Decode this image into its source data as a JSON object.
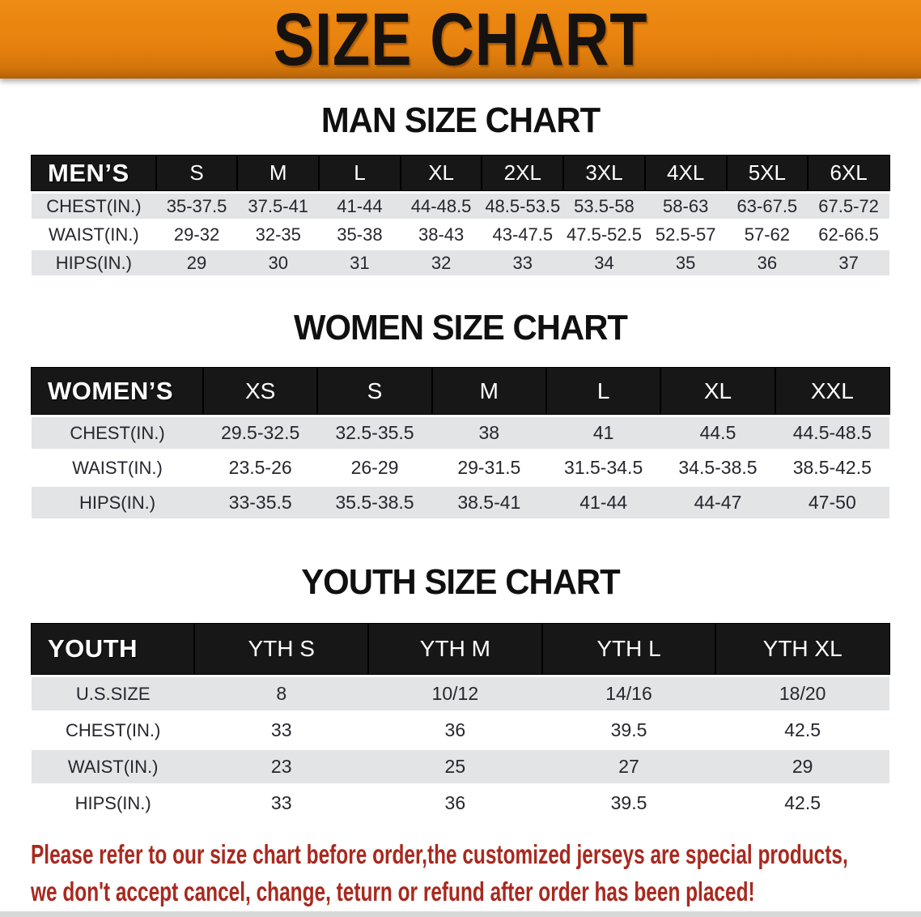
{
  "banner": {
    "title": "SIZE CHART",
    "bg_color": "#E8820E",
    "text_color": "#151210"
  },
  "sections": [
    {
      "heading": "MAN SIZE CHART",
      "table": {
        "header_label": "MEN’S",
        "columns": [
          "S",
          "M",
          "L",
          "XL",
          "2XL",
          "3XL",
          "4XL",
          "5XL",
          "6XL"
        ],
        "rows": [
          {
            "label": "CHEST(IN.)",
            "values": [
              "35-37.5",
              "37.5-41",
              "41-44",
              "44-48.5",
              "48.5-53.5",
              "53.5-58",
              "58-63",
              "63-67.5",
              "67.5-72"
            ]
          },
          {
            "label": "WAIST(IN.)",
            "values": [
              "29-32",
              "32-35",
              "35-38",
              "38-43",
              "43-47.5",
              "47.5-52.5",
              "52.5-57",
              "57-62",
              "62-66.5"
            ]
          },
          {
            "label": "HIPS(IN.)",
            "values": [
              "29",
              "30",
              "31",
              "32",
              "33",
              "34",
              "35",
              "36",
              "37"
            ]
          }
        ]
      }
    },
    {
      "heading": "WOMEN SIZE CHART",
      "table": {
        "header_label": "WOMEN’S",
        "columns": [
          "XS",
          "S",
          "M",
          "L",
          "XL",
          "XXL"
        ],
        "rows": [
          {
            "label": "CHEST(IN.)",
            "values": [
              "29.5-32.5",
              "32.5-35.5",
              "38",
              "41",
              "44.5",
              "44.5-48.5"
            ]
          },
          {
            "label": "WAIST(IN.)",
            "values": [
              "23.5-26",
              "26-29",
              "29-31.5",
              "31.5-34.5",
              "34.5-38.5",
              "38.5-42.5"
            ]
          },
          {
            "label": "HIPS(IN.)",
            "values": [
              "33-35.5",
              "35.5-38.5",
              "38.5-41",
              "41-44",
              "44-47",
              "47-50"
            ]
          }
        ]
      }
    },
    {
      "heading": "YOUTH SIZE CHART",
      "table": {
        "header_label": "YOUTH",
        "columns": [
          "YTH S",
          "YTH M",
          "YTH L",
          "YTH XL"
        ],
        "rows": [
          {
            "label": "U.S.SIZE",
            "values": [
              "8",
              "10/12",
              "14/16",
              "18/20"
            ]
          },
          {
            "label": "CHEST(IN.)",
            "values": [
              "33",
              "36",
              "39.5",
              "42.5"
            ]
          },
          {
            "label": "WAIST(IN.)",
            "values": [
              "23",
              "25",
              "27",
              "29"
            ]
          },
          {
            "label": "HIPS(IN.)",
            "values": [
              "33",
              "36",
              "39.5",
              "42.5"
            ]
          }
        ]
      }
    }
  ],
  "disclaimer": {
    "line1": "Please refer to our size chart before order,the customized jerseys are special products,",
    "line2": "we don't accept cancel, change, teturn or refund after order has been placed!",
    "text_color": "#A8291F"
  },
  "table_style": {
    "header_band_color": "#171717",
    "stripe_color": "#E3E4E6"
  }
}
